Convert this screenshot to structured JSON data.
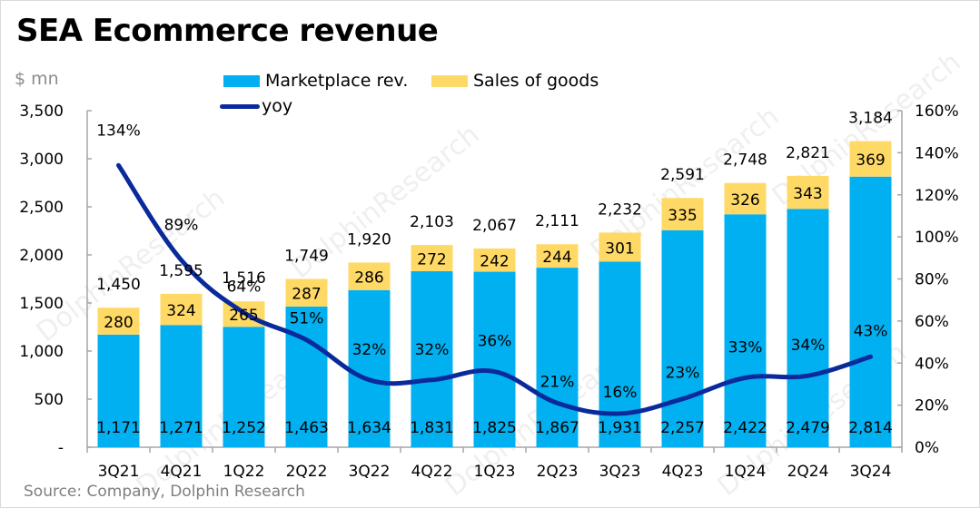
{
  "title": "SEA Ecommerce revenue",
  "unit_label": "$ mn",
  "source": "Source: Company, Dolphin Research",
  "watermark": "DolphinResearch",
  "legend": {
    "marketplace": "Marketplace rev.",
    "goods": "Sales of goods",
    "yoy": "yoy"
  },
  "colors": {
    "marketplace": "#00b0f0",
    "goods": "#ffd966",
    "yoy": "#0a2a9c",
    "axis": "#a6a6a6"
  },
  "chart_data": {
    "type": "bar",
    "stacked": true,
    "title": "SEA Ecommerce revenue",
    "xlabel": "",
    "ylabel": "$ mn",
    "y2label": "yoy",
    "categories": [
      "3Q21",
      "4Q21",
      "1Q22",
      "2Q22",
      "3Q22",
      "4Q22",
      "1Q23",
      "2Q23",
      "3Q23",
      "4Q23",
      "1Q24",
      "2Q24",
      "3Q24"
    ],
    "series": [
      {
        "name": "Marketplace rev.",
        "type": "bar",
        "axis": "left",
        "values": [
          1171,
          1271,
          1252,
          1463,
          1634,
          1831,
          1825,
          1867,
          1931,
          2257,
          2422,
          2479,
          2814
        ]
      },
      {
        "name": "Sales of goods",
        "type": "bar",
        "axis": "left",
        "values": [
          280,
          324,
          265,
          287,
          286,
          272,
          242,
          244,
          301,
          335,
          326,
          343,
          369
        ]
      },
      {
        "name": "yoy",
        "type": "line",
        "axis": "right",
        "values": [
          134,
          89,
          64,
          51,
          32,
          32,
          36,
          21,
          16,
          23,
          33,
          34,
          43
        ],
        "unit": "%"
      }
    ],
    "totals": [
      1450,
      1595,
      1516,
      1749,
      1920,
      2103,
      2067,
      2111,
      2232,
      2591,
      2748,
      2821,
      3184
    ],
    "ylim": [
      0,
      3500
    ],
    "yticks": [
      0,
      500,
      1000,
      1500,
      2000,
      2500,
      3000,
      3500
    ],
    "ytick_labels": [
      "-",
      "500",
      "1,000",
      "1,500",
      "2,000",
      "2,500",
      "3,000",
      "3,500"
    ],
    "y2lim": [
      0,
      160
    ],
    "y2ticks": [
      0,
      20,
      40,
      60,
      80,
      100,
      120,
      140,
      160
    ],
    "y2tick_labels": [
      "0%",
      "20%",
      "40%",
      "60%",
      "80%",
      "100%",
      "120%",
      "140%",
      "160%"
    ],
    "grid": false,
    "legend_position": "top-center"
  }
}
